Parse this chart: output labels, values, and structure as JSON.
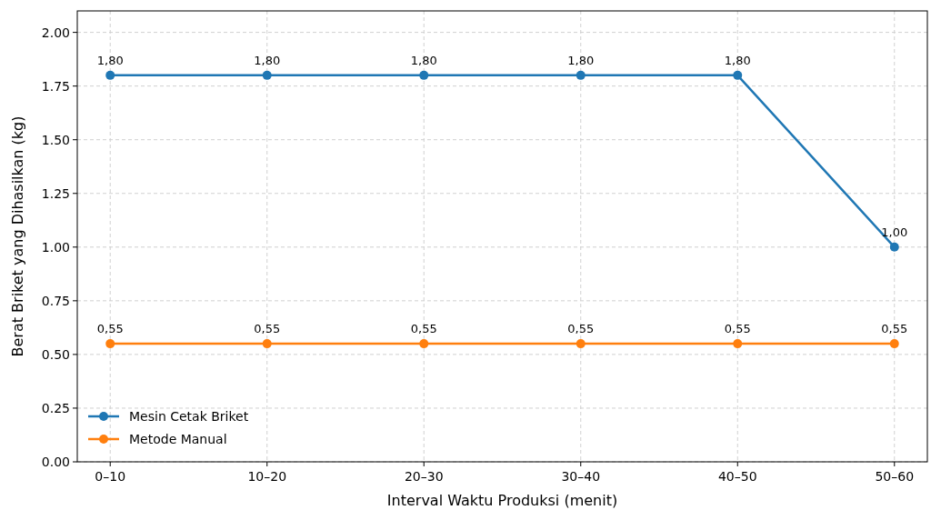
{
  "chart_data": {
    "type": "line",
    "xlabel": "Interval Waktu Produksi (menit)",
    "ylabel": "Berat Briket yang Dihasilkan (kg)",
    "categories": [
      "0–10",
      "10–20",
      "20–30",
      "30–40",
      "40–50",
      "50–60"
    ],
    "series": [
      {
        "name": "Mesin Cetak Briket",
        "color": "#1f77b4",
        "values": [
          1.8,
          1.8,
          1.8,
          1.8,
          1.8,
          1.0
        ],
        "value_labels": [
          "1,80",
          "1,80",
          "1,80",
          "1,80",
          "1,80",
          "1,00"
        ]
      },
      {
        "name": "Metode Manual",
        "color": "#ff7f0e",
        "values": [
          0.55,
          0.55,
          0.55,
          0.55,
          0.55,
          0.55
        ],
        "value_labels": [
          "0,55",
          "0,55",
          "0,55",
          "0,55",
          "0,55",
          "0,55"
        ]
      }
    ],
    "ylim": [
      0,
      2.1
    ],
    "yticks": [
      {
        "value": 0,
        "label": "0.00"
      },
      {
        "value": 0.25,
        "label": "0.25"
      },
      {
        "value": 0.5,
        "label": "0.50"
      },
      {
        "value": 0.75,
        "label": "0.75"
      },
      {
        "value": 1,
        "label": "1.00"
      },
      {
        "value": 1.25,
        "label": "1.25"
      },
      {
        "value": 1.5,
        "label": "1.50"
      },
      {
        "value": 1.75,
        "label": "1.75"
      },
      {
        "value": 2,
        "label": "2.00"
      }
    ],
    "grid": true,
    "legend": "bottom left",
    "marker": "circle",
    "line_style": "solid"
  }
}
